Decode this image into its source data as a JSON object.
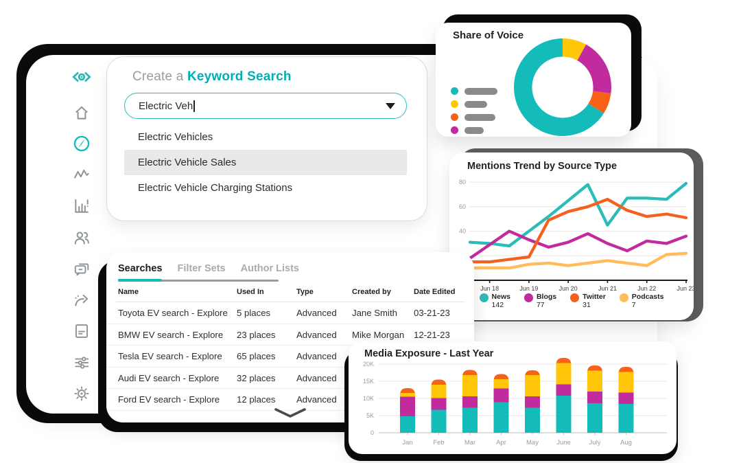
{
  "colors": {
    "teal": "#14bcb9",
    "magenta": "#c12b9e",
    "orange": "#f86218",
    "yellow": "#ffc60a",
    "podcast_yellow": "#ffbc59",
    "frame_black": "#0b0b0b",
    "frame_gray": "#5e5e5e",
    "legend_pill_gray": "#8a8a8a"
  },
  "sidebar": {
    "items": [
      {
        "id": "logo",
        "icon": "meltwater-eye-logo",
        "active": false
      },
      {
        "id": "home",
        "icon": "home-icon",
        "active": false
      },
      {
        "id": "explore",
        "icon": "compass-icon",
        "active": true
      },
      {
        "id": "trends",
        "icon": "pulse-icon",
        "active": false
      },
      {
        "id": "charts",
        "icon": "bar-chart-icon",
        "active": false
      },
      {
        "id": "people",
        "icon": "people-icon",
        "active": false
      },
      {
        "id": "messages",
        "icon": "chat-icon",
        "active": false
      },
      {
        "id": "share",
        "icon": "share-arrow-icon",
        "active": false
      },
      {
        "id": "reports",
        "icon": "document-icon",
        "active": false
      },
      {
        "id": "filters",
        "icon": "sliders-icon",
        "active": false
      },
      {
        "id": "settings",
        "icon": "gear-icon",
        "active": false
      }
    ]
  },
  "keyword_search": {
    "title_prefix": "Create a ",
    "title_highlight": "Keyword Search",
    "input_value": "Electric Veh",
    "options": [
      "Electric Vehicles",
      "Electric Vehicle Sales",
      "Electric Vehicle Charging Stations"
    ],
    "highlighted_option": "Electric Vehicle Sales"
  },
  "share_of_voice": {
    "title": "Share of Voice",
    "chart_data": {
      "type": "pie",
      "variant": "donut",
      "segments": [
        {
          "color_name": "yellow",
          "color": "#ffc60a",
          "value": 8
        },
        {
          "color_name": "magenta",
          "color": "#c12b9e",
          "value": 19
        },
        {
          "color_name": "orange",
          "color": "#f86218",
          "value": 7
        },
        {
          "color_name": "teal",
          "color": "#14bcb9",
          "value": 66
        }
      ],
      "start_angle_deg": -90,
      "legend_placeholder_colors": [
        "#14bcb9",
        "#ffc60a",
        "#f86218",
        "#c12b9e"
      ]
    }
  },
  "mentions_trend": {
    "title": "Mentions Trend by Source Type",
    "chart_data": {
      "type": "line",
      "x_tick_labels": [
        "Jun 18",
        "Jun 19",
        "Jun 20",
        "Jun 21",
        "Jun 22",
        "Jun 23"
      ],
      "x_tick_point_indices": [
        1,
        3,
        5,
        7,
        9,
        11
      ],
      "y_ticks": [
        20,
        40,
        60,
        80
      ],
      "y_max": 84,
      "grid": true,
      "legend_position": "bottom",
      "series": [
        {
          "name": "News",
          "total": "142",
          "color": "#2bbcb9",
          "values": [
            31,
            30,
            28,
            40,
            52,
            65,
            78,
            45,
            67,
            67,
            66,
            79
          ]
        },
        {
          "name": "Blogs",
          "total": "77",
          "color": "#c12b9e",
          "values": [
            18,
            29,
            40,
            33,
            27,
            31,
            38,
            30,
            24,
            32,
            30,
            36
          ]
        },
        {
          "name": "Twitter",
          "total": "31",
          "color": "#f4611f",
          "values": [
            15,
            15,
            17,
            19,
            49,
            56,
            60,
            66,
            57,
            52,
            54,
            51
          ]
        },
        {
          "name": "Podcasts",
          "total": "7",
          "color": "#ffbc59",
          "values": [
            10,
            10,
            10,
            13,
            14,
            12,
            14,
            16,
            14,
            12,
            21,
            22
          ]
        }
      ]
    }
  },
  "searches_panel": {
    "tabs": [
      {
        "label": "Searches",
        "active": true
      },
      {
        "label": "Filter Sets",
        "active": false
      },
      {
        "label": "Author Lists",
        "active": false
      }
    ],
    "columns": [
      "Name",
      "Used In",
      "Type",
      "Created by",
      "Date Edited"
    ],
    "rows": [
      {
        "name": "Toyota EV search - Explore",
        "used_in": "5 places",
        "type": "Advanced",
        "created_by": "Jane Smith",
        "date_edited": "03-21-23"
      },
      {
        "name": "BMW EV search - Explore",
        "used_in": "23 places",
        "type": "Advanced",
        "created_by": "Mike Morgan",
        "date_edited": "12-21-23"
      },
      {
        "name": "Tesla EV search - Explore",
        "used_in": "65 places",
        "type": "Advanced",
        "created_by": "",
        "date_edited": ""
      },
      {
        "name": "Audi EV search - Explore",
        "used_in": "32 places",
        "type": "Advanced",
        "created_by": "",
        "date_edited": ""
      },
      {
        "name": "Ford EV search - Explore",
        "used_in": "12 places",
        "type": "Advanced",
        "created_by": "",
        "date_edited": ""
      }
    ]
  },
  "media_exposure": {
    "title": "Media Exposure - Last Year",
    "chart_data": {
      "type": "bar",
      "stacked": true,
      "categories": [
        "Jan",
        "Feb",
        "Mar",
        "Apr",
        "May",
        "June",
        "July",
        "Aug"
      ],
      "y_ticks": [
        0,
        5,
        10,
        15,
        20
      ],
      "y_tick_labels": [
        "0",
        "5K",
        "10K",
        "15K",
        "20K"
      ],
      "unit": "K",
      "grid": true,
      "series": [
        {
          "name": "teal",
          "color": "#14bcb9",
          "values": [
            4.8,
            6.7,
            7.3,
            8.9,
            7.3,
            10.8,
            8.6,
            8.4
          ]
        },
        {
          "name": "magenta",
          "color": "#c12b9e",
          "values": [
            5.7,
            3.4,
            3.3,
            4.0,
            3.3,
            3.3,
            3.4,
            3.3
          ]
        },
        {
          "name": "yellow",
          "color": "#ffc60a",
          "values": [
            1.1,
            3.9,
            6.2,
            2.7,
            6.2,
            6.2,
            6.1,
            6.0
          ]
        },
        {
          "name": "orange",
          "color": "#f86218",
          "values": [
            1.4,
            1.5,
            1.5,
            1.5,
            1.4,
            1.5,
            1.5,
            1.5
          ]
        }
      ]
    }
  }
}
